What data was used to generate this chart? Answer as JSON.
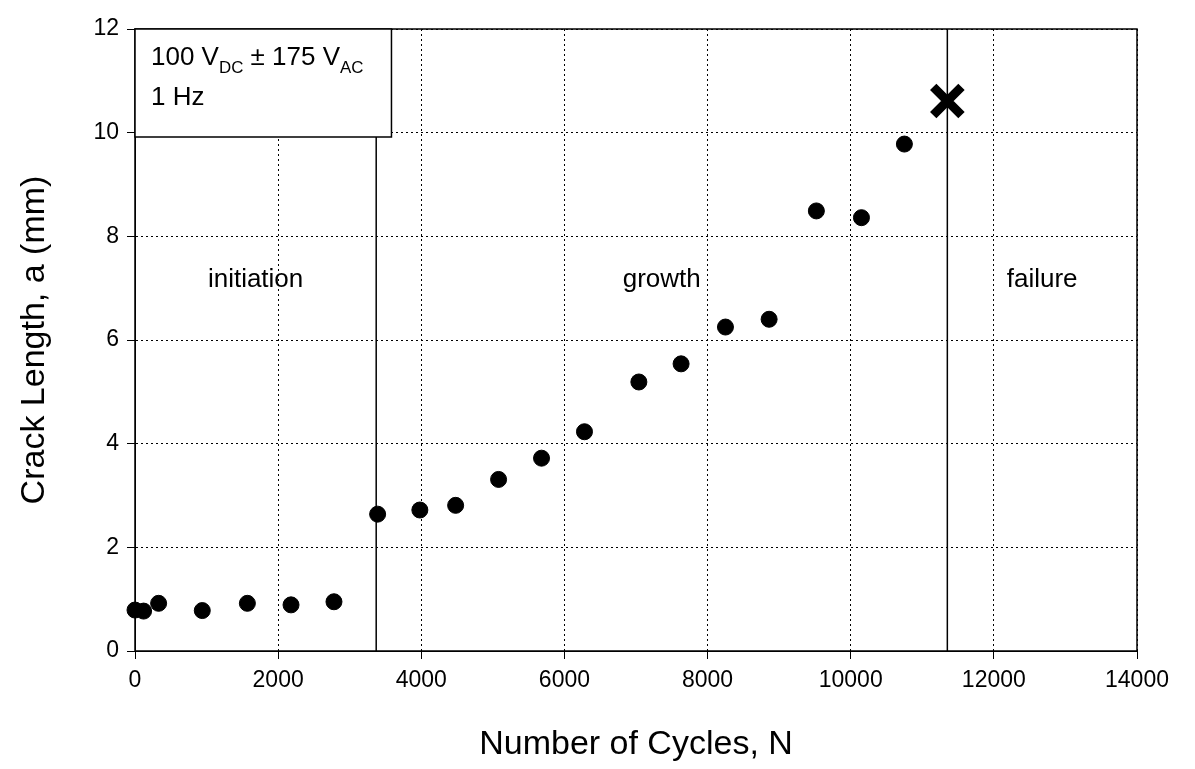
{
  "chart_data": {
    "type": "scatter",
    "xlabel": "Number of Cycles, N",
    "ylabel": "Crack Length, a (mm)",
    "series": [
      {
        "marker": "circle",
        "color": "#000000",
        "x": [
          0,
          120,
          330,
          940,
          1570,
          2180,
          2780,
          3390,
          3980,
          4480,
          5080,
          5680,
          6280,
          7040,
          7630,
          8250,
          8860,
          9520,
          10150,
          10750
        ],
        "values": [
          0.79,
          0.77,
          0.92,
          0.78,
          0.92,
          0.89,
          0.95,
          2.64,
          2.72,
          2.81,
          3.31,
          3.72,
          4.23,
          5.19,
          5.54,
          6.25,
          6.4,
          8.49,
          8.36,
          9.78
        ]
      },
      {
        "marker": "cross",
        "color": "#000000",
        "x": [
          11350
        ],
        "values": [
          10.61
        ]
      }
    ],
    "xlim": [
      0,
      14000
    ],
    "xticks": [
      0,
      2000,
      4000,
      6000,
      8000,
      10000,
      12000,
      14000
    ],
    "ylim": [
      0,
      12
    ],
    "yticks": [
      0,
      2,
      4,
      6,
      8,
      10,
      12
    ],
    "grid": true,
    "legend": false,
    "ref_lines": [
      {
        "axis": "x",
        "value": 3370,
        "color": "#000000",
        "line_style": "solid"
      },
      {
        "axis": "x",
        "value": 11350,
        "color": "#000000",
        "line_style": "solid"
      }
    ],
    "annotations": [
      "100 V$_{DC}$ ± 175 V$_{AC}$",
      "1 Hz",
      "initiation",
      "growth",
      "failure"
    ]
  }
}
